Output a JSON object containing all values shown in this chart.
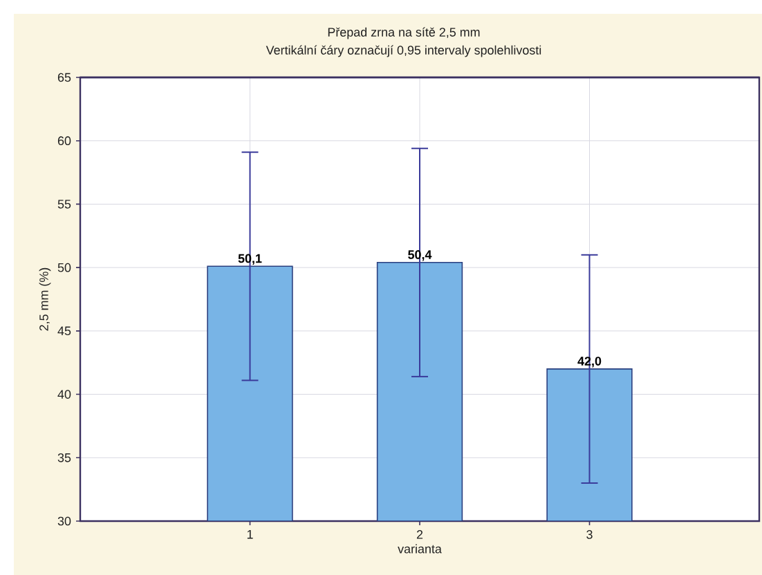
{
  "chart_data": {
    "type": "bar",
    "title": "Přepad zrna na sítě 2,5 mm",
    "subtitle": "Vertikální čáry označují 0,95 intervaly spolehlivosti",
    "xlabel": "varianta",
    "ylabel": "2,5 mm (%)",
    "categories": [
      "1",
      "2",
      "3"
    ],
    "values": [
      50.1,
      50.4,
      42.0
    ],
    "errors": [
      9.0,
      9.0,
      9.0
    ],
    "value_labels": [
      "50,1",
      "50,4",
      "42,0"
    ],
    "color": "#78b4e6",
    "ylim": [
      30,
      65
    ],
    "yticks": [
      30,
      35,
      40,
      45,
      50,
      55,
      60,
      65
    ],
    "grid": true
  }
}
